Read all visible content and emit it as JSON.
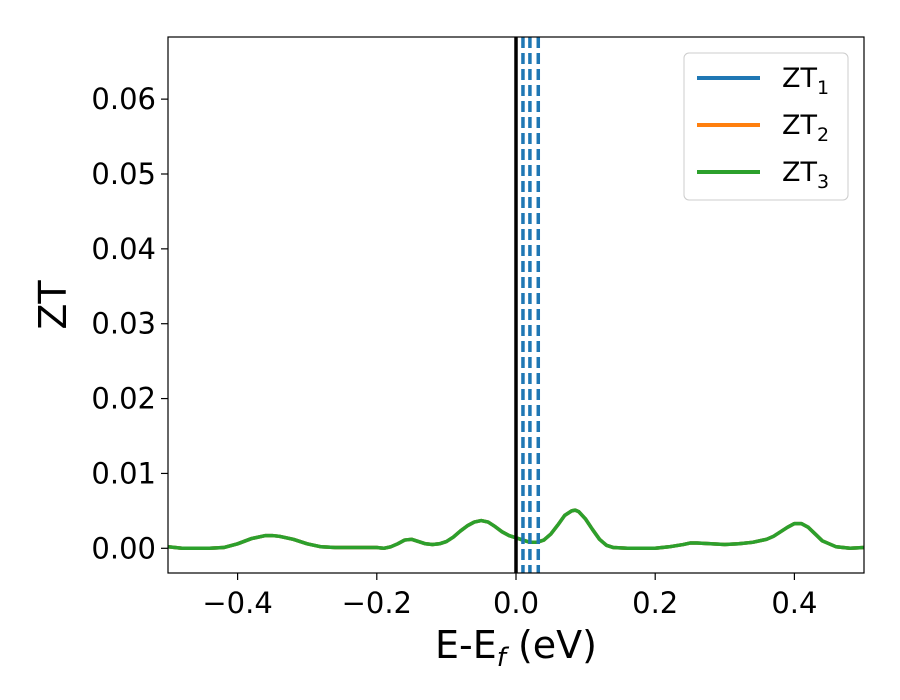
{
  "chart_data": {
    "type": "line",
    "xlabel": "E-E",
    "xlabel_sub": "f",
    "xlabel_unit": " (eV)",
    "ylabel": "ZT",
    "xlim": [
      -0.5,
      0.5
    ],
    "ylim": [
      -0.0033,
      0.0683
    ],
    "xticks": [
      -0.4,
      -0.2,
      0.0,
      0.2,
      0.4
    ],
    "xtick_labels": [
      "−0.4",
      "−0.2",
      "0.0",
      "0.2",
      "0.4"
    ],
    "yticks": [
      0.0,
      0.01,
      0.02,
      0.03,
      0.04,
      0.05,
      0.06
    ],
    "ytick_labels": [
      "0.00",
      "0.01",
      "0.02",
      "0.03",
      "0.04",
      "0.05",
      "0.06"
    ],
    "grid": false,
    "legend_position": "top-right",
    "fermi_line_x": 0.0,
    "fermi_line_color": "#000000",
    "dashed_lines_x": [
      0.01,
      0.02,
      0.032
    ],
    "dashed_lines_color": "#1f77b4",
    "x": [
      -0.5,
      -0.48,
      -0.46,
      -0.44,
      -0.42,
      -0.4,
      -0.38,
      -0.36,
      -0.35,
      -0.34,
      -0.32,
      -0.3,
      -0.28,
      -0.26,
      -0.24,
      -0.22,
      -0.2,
      -0.19,
      -0.18,
      -0.17,
      -0.16,
      -0.15,
      -0.14,
      -0.13,
      -0.12,
      -0.11,
      -0.1,
      -0.09,
      -0.08,
      -0.07,
      -0.06,
      -0.05,
      -0.04,
      -0.03,
      -0.02,
      -0.01,
      0.0,
      0.01,
      0.02,
      0.03,
      0.04,
      0.05,
      0.06,
      0.07,
      0.08,
      0.085,
      0.09,
      0.1,
      0.11,
      0.12,
      0.13,
      0.14,
      0.16,
      0.18,
      0.2,
      0.22,
      0.24,
      0.25,
      0.26,
      0.28,
      0.3,
      0.32,
      0.34,
      0.36,
      0.37,
      0.38,
      0.39,
      0.4,
      0.41,
      0.42,
      0.43,
      0.44,
      0.46,
      0.48,
      0.5
    ],
    "series": [
      {
        "name": "ZT",
        "name_sub": "1",
        "color": "#1f77b4",
        "values": [
          0.0002,
          0.0,
          0.0,
          0.0,
          0.0001,
          0.0006,
          0.0013,
          0.0017,
          0.0017,
          0.0016,
          0.0012,
          0.0006,
          0.0002,
          0.0001,
          0.0001,
          0.0001,
          0.0001,
          0.0,
          0.0002,
          0.0006,
          0.0011,
          0.0012,
          0.0009,
          0.0006,
          0.0005,
          0.0006,
          0.0009,
          0.0015,
          0.0023,
          0.003,
          0.0035,
          0.0037,
          0.0035,
          0.0029,
          0.0022,
          0.0017,
          0.0014,
          0.0011,
          0.0008,
          0.0008,
          0.0011,
          0.0019,
          0.0031,
          0.0044,
          0.005,
          0.0051,
          0.0049,
          0.0039,
          0.0025,
          0.0012,
          0.0004,
          0.0001,
          0.0,
          0.0,
          0.0,
          0.0002,
          0.0005,
          0.0007,
          0.0007,
          0.0006,
          0.0005,
          0.0006,
          0.0008,
          0.0012,
          0.0016,
          0.0022,
          0.0028,
          0.0033,
          0.0033,
          0.0028,
          0.0019,
          0.001,
          0.0002,
          0.0,
          0.0001
        ]
      },
      {
        "name": "ZT",
        "name_sub": "2",
        "color": "#ff7f0e",
        "values": [
          0.0002,
          0.0,
          0.0,
          0.0,
          0.0001,
          0.0006,
          0.0013,
          0.0017,
          0.0017,
          0.0016,
          0.0012,
          0.0006,
          0.0002,
          0.0001,
          0.0001,
          0.0001,
          0.0001,
          0.0,
          0.0002,
          0.0006,
          0.0011,
          0.0012,
          0.0009,
          0.0006,
          0.0005,
          0.0006,
          0.0009,
          0.0015,
          0.0023,
          0.003,
          0.0035,
          0.0037,
          0.0035,
          0.0029,
          0.0022,
          0.0017,
          0.0014,
          0.0011,
          0.0008,
          0.0008,
          0.0011,
          0.0019,
          0.0031,
          0.0044,
          0.005,
          0.0051,
          0.0049,
          0.0039,
          0.0025,
          0.0012,
          0.0004,
          0.0001,
          0.0,
          0.0,
          0.0,
          0.0002,
          0.0005,
          0.0007,
          0.0007,
          0.0006,
          0.0005,
          0.0006,
          0.0008,
          0.0012,
          0.0016,
          0.0022,
          0.0028,
          0.0033,
          0.0033,
          0.0028,
          0.0019,
          0.001,
          0.0002,
          0.0,
          0.0001
        ]
      },
      {
        "name": "ZT",
        "name_sub": "3",
        "color": "#2ca02c",
        "values": [
          0.0002,
          0.0,
          0.0,
          0.0,
          0.0001,
          0.0006,
          0.0013,
          0.0017,
          0.0017,
          0.0016,
          0.0012,
          0.0006,
          0.0002,
          0.0001,
          0.0001,
          0.0001,
          0.0001,
          0.0,
          0.0002,
          0.0006,
          0.0011,
          0.0012,
          0.0009,
          0.0006,
          0.0005,
          0.0006,
          0.0009,
          0.0015,
          0.0023,
          0.003,
          0.0035,
          0.0037,
          0.0035,
          0.0029,
          0.0022,
          0.0017,
          0.0014,
          0.0011,
          0.0008,
          0.0008,
          0.0011,
          0.0019,
          0.0031,
          0.0044,
          0.005,
          0.0051,
          0.0049,
          0.0039,
          0.0025,
          0.0012,
          0.0004,
          0.0001,
          0.0,
          0.0,
          0.0,
          0.0002,
          0.0005,
          0.0007,
          0.0007,
          0.0006,
          0.0005,
          0.0006,
          0.0008,
          0.0012,
          0.0016,
          0.0022,
          0.0028,
          0.0033,
          0.0033,
          0.0028,
          0.0019,
          0.001,
          0.0002,
          0.0,
          0.0001
        ]
      }
    ]
  }
}
